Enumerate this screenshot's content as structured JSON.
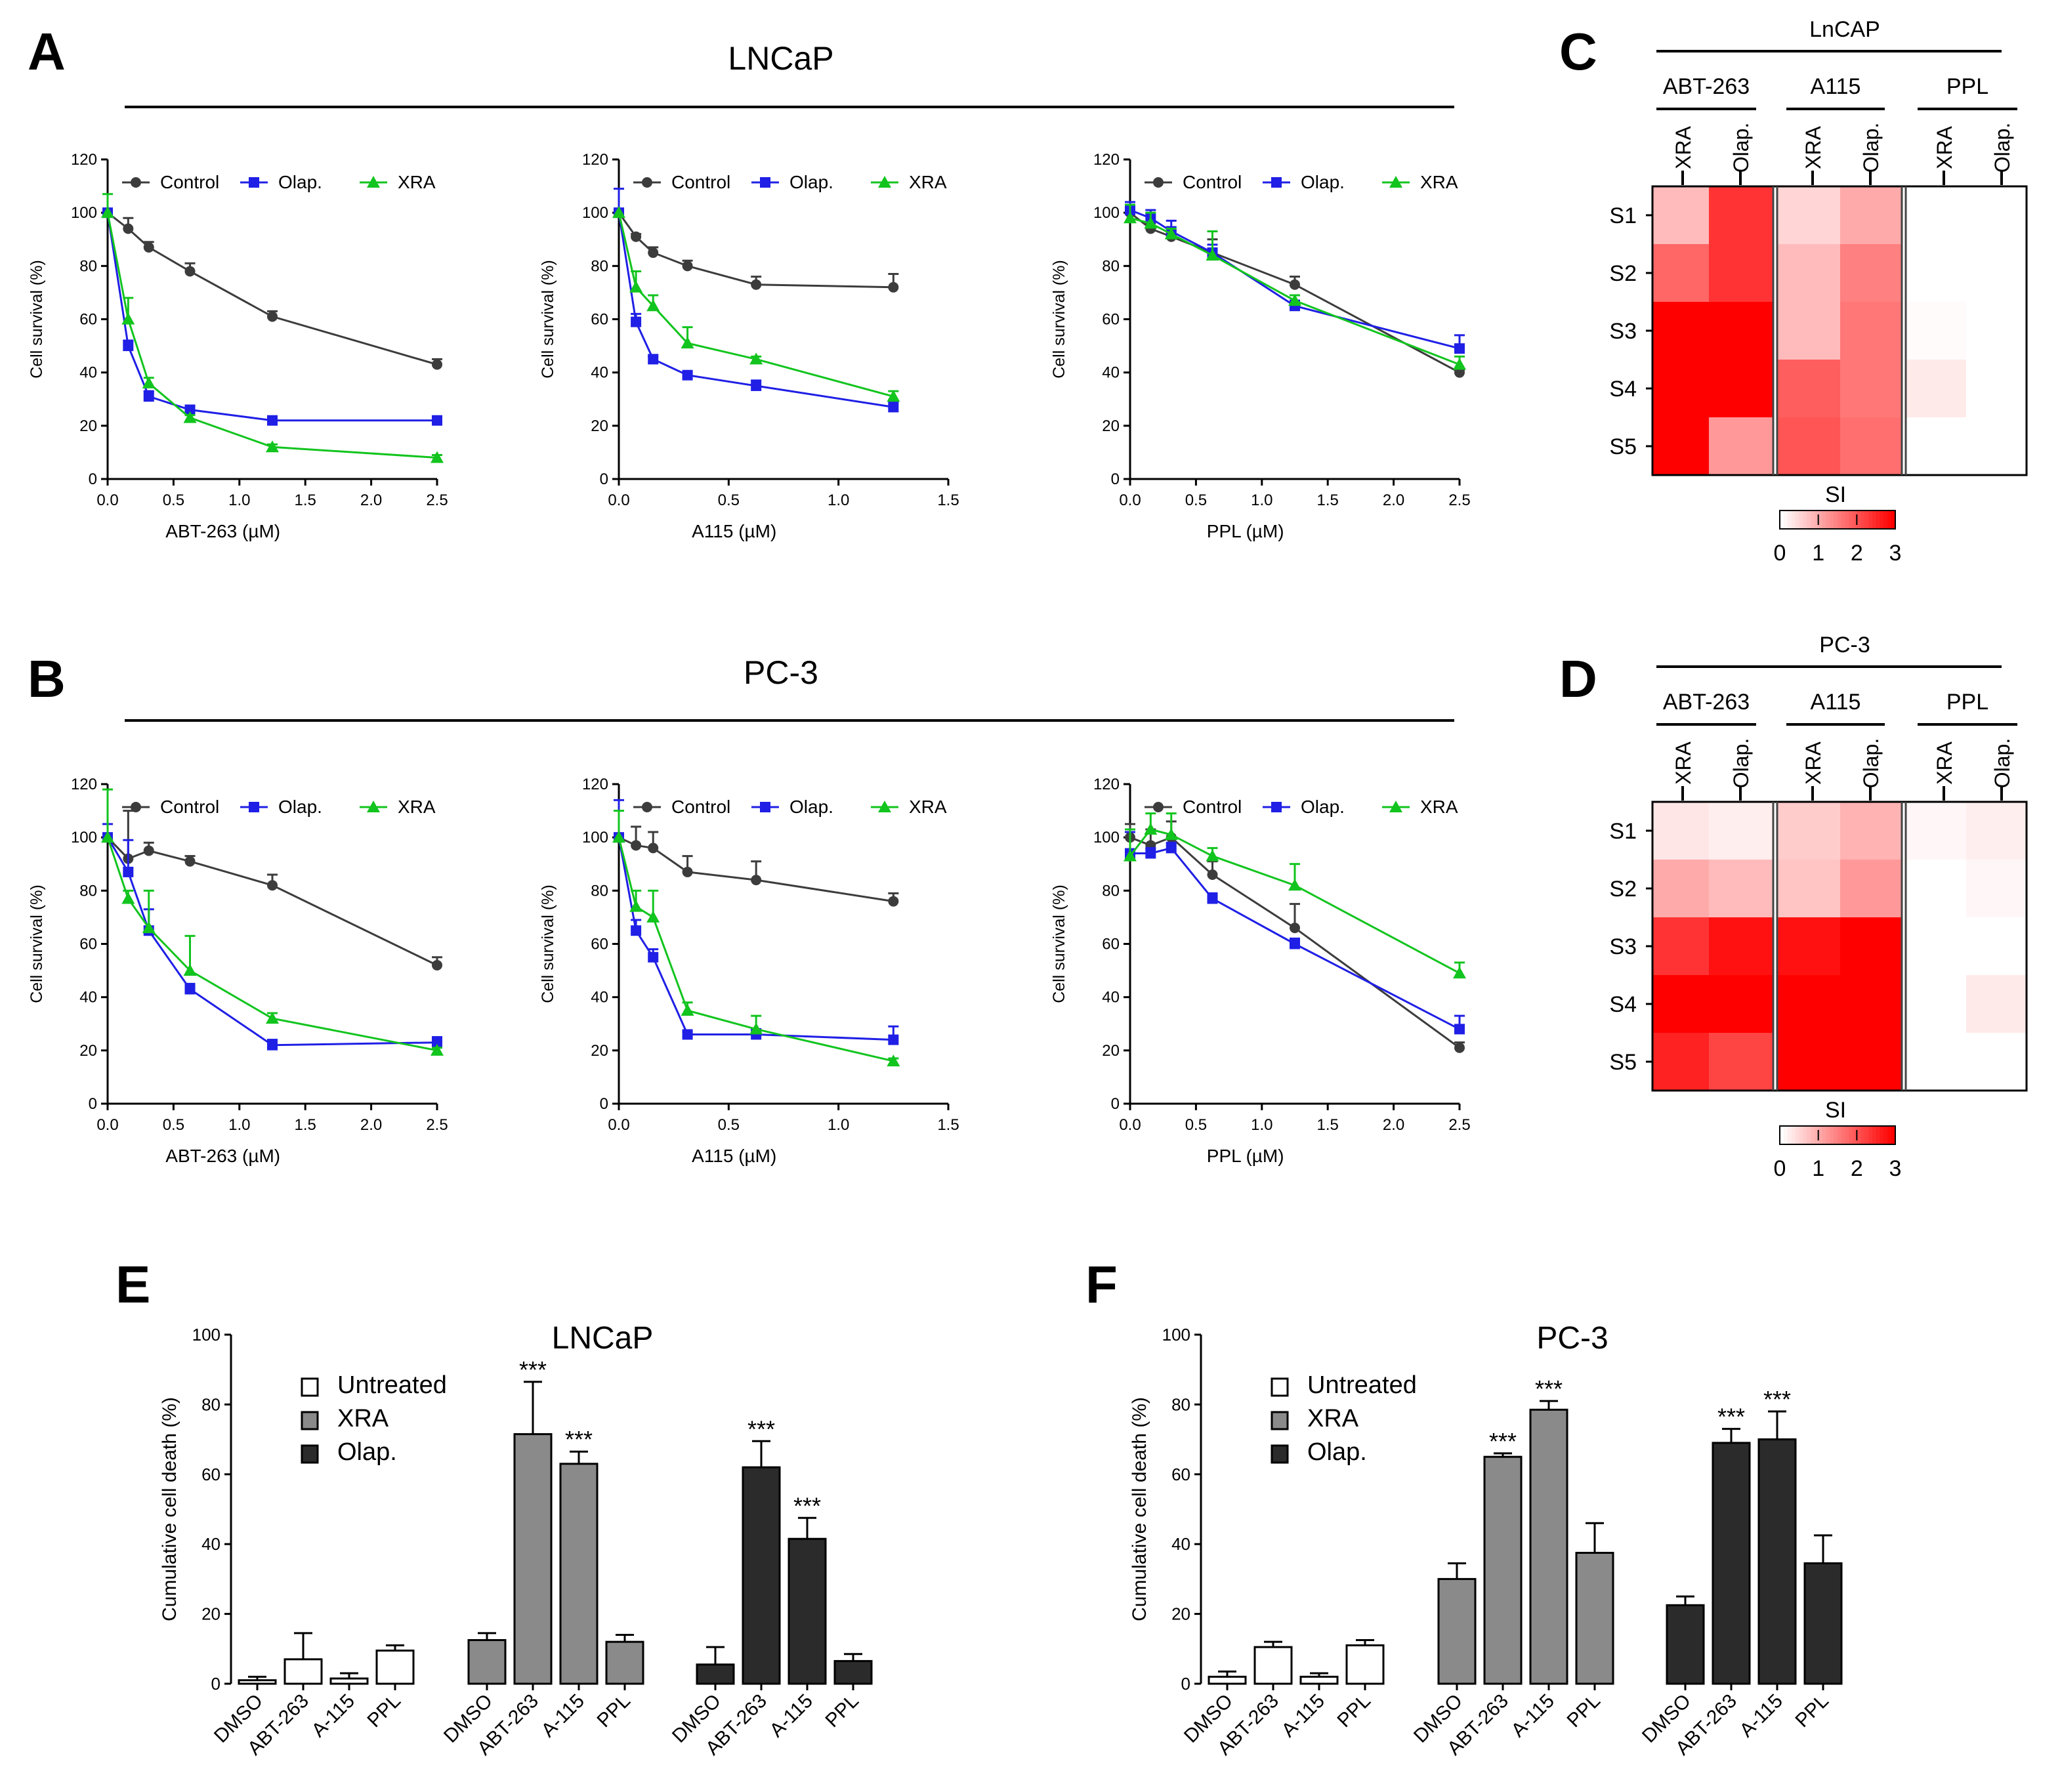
{
  "colors": {
    "control": "#3c3c3c",
    "olap": "#1f1fe6",
    "xra": "#12c41e",
    "heat": "#ff0000",
    "bar_untreated": "#ffffff",
    "bar_xra": "#8a8a8a",
    "bar_olap": "#2b2b2b"
  },
  "panel_letters": {
    "A": "A",
    "B": "B",
    "C": "C",
    "D": "D",
    "E": "E",
    "F": "F"
  },
  "group_titles": {
    "A": "LNCaP",
    "B": "PC-3"
  },
  "survival": {
    "ylabel": "Cell survival (%)",
    "legend": [
      "Control",
      "Olap.",
      "XRA"
    ],
    "yticks": [
      "0",
      "20",
      "40",
      "60",
      "80",
      "100",
      "120"
    ],
    "drugs": [
      {
        "xlabel": "ABT-263 (µM)",
        "xmax": 2.5,
        "xticks": [
          "0.0",
          "0.5",
          "1.0",
          "1.5",
          "2.0",
          "2.5"
        ]
      },
      {
        "xlabel": "A115 (µM)",
        "xmax": 1.5,
        "xticks": [
          "0.0",
          "0.5",
          "1.0",
          "1.5"
        ]
      },
      {
        "xlabel": "PPL (µM)",
        "xmax": 2.5,
        "xticks": [
          "0.0",
          "0.5",
          "1.0",
          "1.5",
          "2.0",
          "2.5"
        ]
      }
    ]
  },
  "chart_data": [
    {
      "type": "line",
      "panel": "A",
      "cell_line": "LNCaP",
      "drug": "ABT-263",
      "ylim": [
        0,
        120
      ],
      "series": [
        {
          "name": "Control",
          "x": [
            0,
            0.156,
            0.3125,
            0.625,
            1.25,
            2.5
          ],
          "y": [
            100,
            94,
            87,
            78,
            61,
            43
          ],
          "err": [
            0,
            4,
            2,
            3,
            2,
            2
          ]
        },
        {
          "name": "Olap.",
          "x": [
            0,
            0.156,
            0.3125,
            0.625,
            1.25,
            2.5
          ],
          "y": [
            100,
            50,
            31,
            26,
            22,
            22
          ],
          "err": [
            0,
            2,
            2,
            1,
            1,
            1
          ]
        },
        {
          "name": "XRA",
          "x": [
            0,
            0.156,
            0.3125,
            0.625,
            1.25,
            2.5
          ],
          "y": [
            100,
            60,
            36,
            23,
            12,
            8
          ],
          "err": [
            7,
            8,
            2,
            1,
            1,
            1
          ]
        }
      ]
    },
    {
      "type": "line",
      "panel": "A",
      "cell_line": "LNCaP",
      "drug": "A115",
      "ylim": [
        0,
        120
      ],
      "series": [
        {
          "name": "Control",
          "x": [
            0,
            0.078,
            0.156,
            0.3125,
            0.625,
            1.25
          ],
          "y": [
            100,
            91,
            85,
            80,
            73,
            72
          ],
          "err": [
            0,
            1,
            2,
            2,
            3,
            5
          ]
        },
        {
          "name": "Olap.",
          "x": [
            0,
            0.078,
            0.156,
            0.3125,
            0.625,
            1.25
          ],
          "y": [
            100,
            59,
            45,
            39,
            35,
            27
          ],
          "err": [
            9,
            3,
            1,
            1,
            2,
            2
          ]
        },
        {
          "name": "XRA",
          "x": [
            0,
            0.078,
            0.156,
            0.3125,
            0.625,
            1.25
          ],
          "y": [
            100,
            72,
            65,
            51,
            45,
            31
          ],
          "err": [
            0,
            6,
            4,
            6,
            1,
            2
          ]
        }
      ]
    },
    {
      "type": "line",
      "panel": "A",
      "cell_line": "LNCaP",
      "drug": "PPL",
      "ylim": [
        0,
        120
      ],
      "series": [
        {
          "name": "Control",
          "x": [
            0,
            0.156,
            0.3125,
            0.625,
            1.25,
            2.5
          ],
          "y": [
            100,
            94,
            91,
            85,
            73,
            40
          ],
          "err": [
            0,
            2,
            2,
            5,
            3,
            1
          ]
        },
        {
          "name": "Olap.",
          "x": [
            0,
            0.156,
            0.3125,
            0.625,
            1.25,
            2.5
          ],
          "y": [
            101,
            98,
            93,
            85,
            65,
            49
          ],
          "err": [
            3,
            3,
            4,
            3,
            2,
            5
          ]
        },
        {
          "name": "XRA",
          "x": [
            0,
            0.156,
            0.3125,
            0.625,
            1.25,
            2.5
          ],
          "y": [
            98,
            96,
            92,
            84,
            67,
            43
          ],
          "err": [
            5,
            4,
            2,
            9,
            2,
            3
          ]
        }
      ]
    },
    {
      "type": "line",
      "panel": "B",
      "cell_line": "PC-3",
      "drug": "ABT-263",
      "ylim": [
        0,
        120
      ],
      "series": [
        {
          "name": "Control",
          "x": [
            0,
            0.156,
            0.3125,
            0.625,
            1.25,
            2.5
          ],
          "y": [
            100,
            92,
            95,
            91,
            82,
            52
          ],
          "err": [
            0,
            18,
            3,
            2,
            4,
            3
          ]
        },
        {
          "name": "Olap.",
          "x": [
            0,
            0.156,
            0.3125,
            0.625,
            1.25,
            2.5
          ],
          "y": [
            100,
            87,
            65,
            43,
            22,
            23
          ],
          "err": [
            5,
            12,
            8,
            2,
            2,
            2
          ]
        },
        {
          "name": "XRA",
          "x": [
            0,
            0.156,
            0.3125,
            0.625,
            1.25,
            2.5
          ],
          "y": [
            100,
            77,
            66,
            50,
            32,
            20
          ],
          "err": [
            18,
            3,
            14,
            13,
            2,
            1
          ]
        }
      ]
    },
    {
      "type": "line",
      "panel": "B",
      "cell_line": "PC-3",
      "drug": "A115",
      "ylim": [
        0,
        120
      ],
      "series": [
        {
          "name": "Control",
          "x": [
            0,
            0.078,
            0.156,
            0.3125,
            0.625,
            1.25
          ],
          "y": [
            100,
            97,
            96,
            87,
            84,
            76
          ],
          "err": [
            0,
            7,
            6,
            6,
            7,
            3
          ]
        },
        {
          "name": "Olap.",
          "x": [
            0,
            0.078,
            0.156,
            0.3125,
            0.625,
            1.25
          ],
          "y": [
            100,
            65,
            55,
            26,
            26,
            24
          ],
          "err": [
            14,
            4,
            3,
            1,
            2,
            5
          ]
        },
        {
          "name": "XRA",
          "x": [
            0,
            0.078,
            0.156,
            0.3125,
            0.625,
            1.25
          ],
          "y": [
            100,
            74,
            70,
            35,
            28,
            16
          ],
          "err": [
            10,
            6,
            10,
            3,
            5,
            1
          ]
        }
      ]
    },
    {
      "type": "line",
      "panel": "B",
      "cell_line": "PC-3",
      "drug": "PPL",
      "ylim": [
        0,
        120
      ],
      "series": [
        {
          "name": "Control",
          "x": [
            0,
            0.156,
            0.3125,
            0.625,
            1.25,
            2.5
          ],
          "y": [
            100,
            97,
            100,
            86,
            66,
            21
          ],
          "err": [
            5,
            6,
            6,
            5,
            9,
            2
          ]
        },
        {
          "name": "Olap.",
          "x": [
            0,
            0.156,
            0.3125,
            0.625,
            1.25,
            2.5
          ],
          "y": [
            94,
            94,
            96,
            77,
            60,
            28
          ],
          "err": [
            8,
            2,
            2,
            2,
            2,
            5
          ]
        },
        {
          "name": "XRA",
          "x": [
            0,
            0.156,
            0.3125,
            0.625,
            1.25,
            2.5
          ],
          "y": [
            93,
            103,
            101,
            93,
            82,
            49
          ],
          "err": [
            10,
            6,
            8,
            3,
            8,
            4
          ]
        }
      ]
    },
    {
      "type": "heatmap",
      "panel": "C",
      "title": "LnCAP",
      "drug_headers": [
        "ABT-263",
        "A115",
        "PPL"
      ],
      "columns": [
        "XRA",
        "Olap.",
        "XRA",
        "Olap.",
        "XRA",
        "Olap."
      ],
      "rows": [
        "S1",
        "S2",
        "S3",
        "S4",
        "S5"
      ],
      "values": [
        [
          0.8,
          2.4,
          0.5,
          1.0,
          0,
          0
        ],
        [
          1.8,
          2.4,
          0.8,
          1.5,
          0,
          0
        ],
        [
          3.0,
          3.0,
          0.8,
          1.6,
          0.05,
          0
        ],
        [
          3.0,
          3.0,
          1.9,
          1.6,
          0.25,
          0
        ],
        [
          3.0,
          1.2,
          2.0,
          1.7,
          0,
          0
        ]
      ],
      "scale": {
        "label": "SI",
        "ticks": [
          "0",
          "1",
          "2",
          "3"
        ],
        "min": 0,
        "max": 3
      }
    },
    {
      "type": "heatmap",
      "panel": "D",
      "title": "PC-3",
      "drug_headers": [
        "ABT-263",
        "A115",
        "PPL"
      ],
      "columns": [
        "XRA",
        "Olap.",
        "XRA",
        "Olap.",
        "XRA",
        "Olap."
      ],
      "rows": [
        "S1",
        "S2",
        "S3",
        "S4",
        "S5"
      ],
      "values": [
        [
          0.3,
          0.2,
          0.6,
          0.9,
          0.1,
          0.2
        ],
        [
          1.0,
          0.8,
          0.7,
          1.2,
          0,
          0.1
        ],
        [
          2.4,
          2.8,
          2.8,
          3.0,
          0,
          0
        ],
        [
          3.0,
          3.0,
          3.0,
          3.0,
          0,
          0.25
        ],
        [
          2.6,
          2.2,
          3.0,
          3.0,
          0,
          0
        ]
      ],
      "scale": {
        "label": "SI",
        "ticks": [
          "0",
          "1",
          "2",
          "3"
        ],
        "min": 0,
        "max": 3
      }
    },
    {
      "type": "bar",
      "panel": "E",
      "title": "LNCaP",
      "ylabel": "Cumulative cell death (%)",
      "ylim": [
        0,
        100
      ],
      "yticks": [
        "0",
        "20",
        "40",
        "60",
        "80",
        "100"
      ],
      "legend": [
        "Untreated",
        "XRA",
        "Olap."
      ],
      "groups": [
        {
          "name": "Untreated",
          "categories": [
            "DMSO",
            "ABT-263",
            "A-115",
            "PPL"
          ],
          "values": [
            1,
            7,
            1.5,
            9.5
          ],
          "err": [
            1,
            7.5,
            1.5,
            1.5
          ],
          "sig": [
            "",
            "",
            "",
            ""
          ]
        },
        {
          "name": "XRA",
          "categories": [
            "DMSO",
            "ABT-263",
            "A-115",
            "PPL"
          ],
          "values": [
            12.5,
            71.5,
            63,
            12
          ],
          "err": [
            2,
            15,
            3.5,
            2
          ],
          "sig": [
            "",
            "***",
            "***",
            ""
          ]
        },
        {
          "name": "Olap.",
          "categories": [
            "DMSO",
            "ABT-263",
            "A-115",
            "PPL"
          ],
          "values": [
            5.5,
            62,
            41.5,
            6.5
          ],
          "err": [
            5,
            7.5,
            6,
            2
          ],
          "sig": [
            "",
            "***",
            "***",
            ""
          ]
        }
      ]
    },
    {
      "type": "bar",
      "panel": "F",
      "title": "PC-3",
      "ylabel": "Cumulative cell death (%)",
      "ylim": [
        0,
        100
      ],
      "yticks": [
        "0",
        "20",
        "40",
        "60",
        "80",
        "100"
      ],
      "legend": [
        "Untreated",
        "XRA",
        "Olap."
      ],
      "groups": [
        {
          "name": "Untreated",
          "categories": [
            "DMSO",
            "ABT-263",
            "A-115",
            "PPL"
          ],
          "values": [
            2,
            10.5,
            2,
            11
          ],
          "err": [
            1.5,
            1.5,
            1,
            1.5
          ],
          "sig": [
            "",
            "",
            "",
            ""
          ]
        },
        {
          "name": "XRA",
          "categories": [
            "DMSO",
            "ABT-263",
            "A-115",
            "PPL"
          ],
          "values": [
            30,
            65,
            78.5,
            37.5
          ],
          "err": [
            4.5,
            1,
            2.5,
            8.5
          ],
          "sig": [
            "",
            "***",
            "***",
            ""
          ]
        },
        {
          "name": "Olap.",
          "categories": [
            "DMSO",
            "ABT-263",
            "A-115",
            "PPL"
          ],
          "values": [
            22.5,
            69,
            70,
            34.5
          ],
          "err": [
            2.5,
            4,
            8,
            8
          ],
          "sig": [
            "",
            "***",
            "***",
            ""
          ]
        }
      ]
    }
  ]
}
